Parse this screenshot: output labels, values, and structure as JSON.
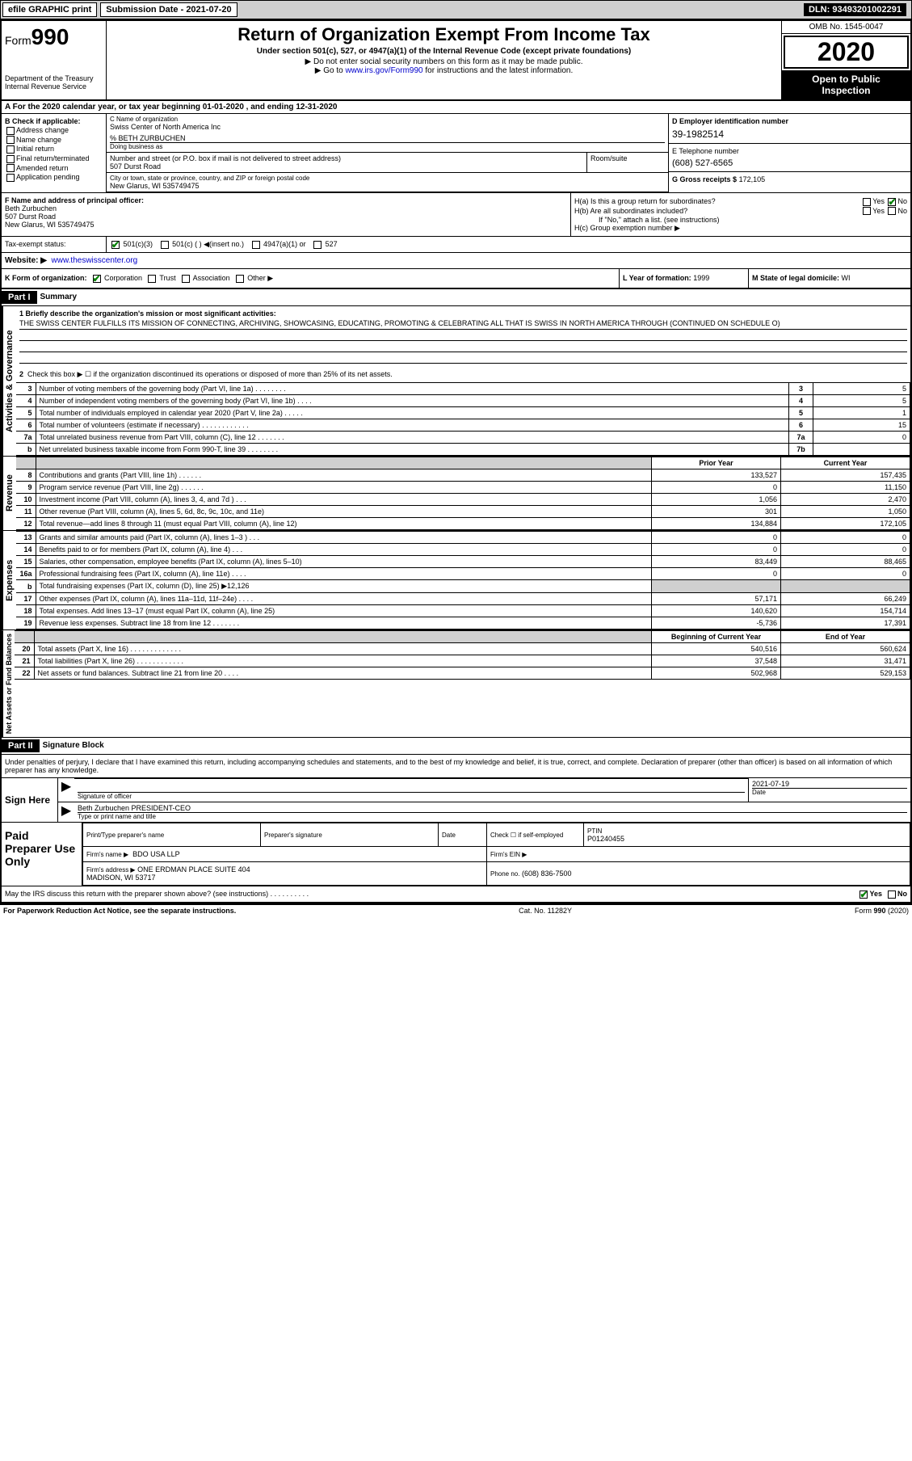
{
  "topbar": {
    "efile": "efile GRAPHIC print",
    "submission": "Submission Date - 2021-07-20",
    "dln": "DLN: 93493201002291"
  },
  "header": {
    "form": "Form",
    "form_num": "990",
    "title": "Return of Organization Exempt From Income Tax",
    "sub1": "Under section 501(c), 527, or 4947(a)(1) of the Internal Revenue Code (except private foundations)",
    "note1": "▶ Do not enter social security numbers on this form as it may be made public.",
    "note2_pre": "▶ Go to ",
    "note2_link": "www.irs.gov/Form990",
    "note2_post": " for instructions and the latest information.",
    "dept": "Department of the Treasury\nInternal Revenue Service",
    "omb": "OMB No. 1545-0047",
    "year": "2020",
    "inspect1": "Open to Public",
    "inspect2": "Inspection"
  },
  "row_a": "A For the 2020 calendar year, or tax year beginning 01-01-2020    , and ending 12-31-2020",
  "col_b": {
    "title": "B Check if applicable:",
    "opts": [
      "Address change",
      "Name change",
      "Initial return",
      "Final return/terminated",
      "Amended return",
      "Application pending"
    ]
  },
  "name_block": {
    "c_lbl": "C Name of organization",
    "c_val": "Swiss Center of North America Inc",
    "care": "% BETH ZURBUCHEN",
    "dba_lbl": "Doing business as",
    "dba_val": "",
    "addr_lbl": "Number and street (or P.O. box if mail is not delivered to street address)",
    "room_lbl": "Room/suite",
    "addr_val": "507 Durst Road",
    "city_lbl": "City or town, state or province, country, and ZIP or foreign postal code",
    "city_val": "New Glarus, WI  535749475"
  },
  "d_block": {
    "lbl": "D Employer identification number",
    "val": "39-1982514"
  },
  "e_block": {
    "lbl": "E Telephone number",
    "val": "(608) 527-6565"
  },
  "g_block": {
    "lbl": "G Gross receipts $",
    "val": "172,105"
  },
  "f_block": {
    "lbl": "F  Name and address of principal officer:",
    "name": "Beth Zurbuchen",
    "addr": "507 Durst Road",
    "city": "New Glarus, WI  535749475"
  },
  "h_block": {
    "ha": "H(a)  Is this a group return for subordinates?",
    "hb": "H(b)  Are all subordinates included?",
    "hb_note": "If \"No,\" attach a list. (see instructions)",
    "hc": "H(c)  Group exemption number ▶",
    "yes": "Yes",
    "no": "No"
  },
  "i_block": {
    "lbl": "Tax-exempt status:",
    "opts": [
      "501(c)(3)",
      "501(c) (  ) ◀(insert no.)",
      "4947(a)(1) or",
      "527"
    ]
  },
  "j_block": {
    "lbl": "J",
    "web": "Website: ▶",
    "url": "www.theswisscenter.org"
  },
  "k_block": {
    "lbl": "K Form of organization:",
    "opts": [
      "Corporation",
      "Trust",
      "Association",
      "Other ▶"
    ]
  },
  "l_block": {
    "lbl": "L Year of formation:",
    "val": "1999"
  },
  "m_block": {
    "lbl": "M State of legal domicile:",
    "val": "WI"
  },
  "part1": {
    "hdr": "Part I",
    "title": "Summary",
    "line1_lbl": "1  Briefly describe the organization's mission or most significant activities:",
    "line1_val": "THE SWISS CENTER FULFILLS ITS MISSION OF CONNECTING, ARCHIVING, SHOWCASING, EDUCATING, PROMOTING & CELEBRATING ALL THAT IS SWISS IN NORTH AMERICA THROUGH (CONTINUED ON SCHEDULE O)",
    "line2": "Check this box ▶ ☐  if the organization discontinued its operations or disposed of more than 25% of its net assets.",
    "rows_gov": [
      {
        "n": "3",
        "d": "Number of voting members of the governing body (Part VI, line 1a)  .   .   .   .   .   .   .   .",
        "b": "3",
        "v": "5"
      },
      {
        "n": "4",
        "d": "Number of independent voting members of the governing body (Part VI, line 1b)  .   .   .   .",
        "b": "4",
        "v": "5"
      },
      {
        "n": "5",
        "d": "Total number of individuals employed in calendar year 2020 (Part V, line 2a)  .   .   .   .   .",
        "b": "5",
        "v": "1"
      },
      {
        "n": "6",
        "d": "Total number of volunteers (estimate if necessary)   .   .   .   .   .   .   .   .   .   .   .   .",
        "b": "6",
        "v": "15"
      },
      {
        "n": "7a",
        "d": "Total unrelated business revenue from Part VIII, column (C), line 12  .   .   .   .   .   .   .",
        "b": "7a",
        "v": "0"
      },
      {
        "n": "b",
        "d": "Net unrelated business taxable income from Form 990-T, line 39   .   .   .   .   .   .   .   .",
        "b": "7b",
        "v": ""
      }
    ],
    "prior_hdr": "Prior Year",
    "curr_hdr": "Current Year",
    "rows_rev": [
      {
        "n": "8",
        "d": "Contributions and grants (Part VIII, line 1h)   .   .   .   .   .   .",
        "p": "133,527",
        "c": "157,435"
      },
      {
        "n": "9",
        "d": "Program service revenue (Part VIII, line 2g)   .   .   .   .   .   .",
        "p": "0",
        "c": "11,150"
      },
      {
        "n": "10",
        "d": "Investment income (Part VIII, column (A), lines 3, 4, and 7d )   .   .   .",
        "p": "1,056",
        "c": "2,470"
      },
      {
        "n": "11",
        "d": "Other revenue (Part VIII, column (A), lines 5, 6d, 8c, 9c, 10c, and 11e)",
        "p": "301",
        "c": "1,050"
      },
      {
        "n": "12",
        "d": "Total revenue—add lines 8 through 11 (must equal Part VIII, column (A), line 12)",
        "p": "134,884",
        "c": "172,105"
      }
    ],
    "rows_exp": [
      {
        "n": "13",
        "d": "Grants and similar amounts paid (Part IX, column (A), lines 1–3 )  .   .   .",
        "p": "0",
        "c": "0"
      },
      {
        "n": "14",
        "d": "Benefits paid to or for members (Part IX, column (A), line 4)  .   .   .",
        "p": "0",
        "c": "0"
      },
      {
        "n": "15",
        "d": "Salaries, other compensation, employee benefits (Part IX, column (A), lines 5–10)",
        "p": "83,449",
        "c": "88,465"
      },
      {
        "n": "16a",
        "d": "Professional fundraising fees (Part IX, column (A), line 11e)  .   .   .   .",
        "p": "0",
        "c": "0"
      },
      {
        "n": "b",
        "d": "Total fundraising expenses (Part IX, column (D), line 25) ▶12,126",
        "p": "",
        "c": "",
        "shade": true
      },
      {
        "n": "17",
        "d": "Other expenses (Part IX, column (A), lines 11a–11d, 11f–24e)  .   .   .   .",
        "p": "57,171",
        "c": "66,249"
      },
      {
        "n": "18",
        "d": "Total expenses. Add lines 13–17 (must equal Part IX, column (A), line 25)",
        "p": "140,620",
        "c": "154,714"
      },
      {
        "n": "19",
        "d": "Revenue less expenses. Subtract line 18 from line 12 .   .   .   .   .   .   .",
        "p": "-5,736",
        "c": "17,391"
      }
    ],
    "beg_hdr": "Beginning of Current Year",
    "end_hdr": "End of Year",
    "rows_net": [
      {
        "n": "20",
        "d": "Total assets (Part X, line 16)  .   .   .   .   .   .   .   .   .   .   .   .   .",
        "p": "540,516",
        "c": "560,624"
      },
      {
        "n": "21",
        "d": "Total liabilities (Part X, line 26)  .   .   .   .   .   .   .   .   .   .   .   .",
        "p": "37,548",
        "c": "31,471"
      },
      {
        "n": "22",
        "d": "Net assets or fund balances. Subtract line 21 from line 20  .   .   .   .",
        "p": "502,968",
        "c": "529,153"
      }
    ],
    "vert_gov": "Activities & Governance",
    "vert_rev": "Revenue",
    "vert_exp": "Expenses",
    "vert_net": "Net Assets or Fund Balances"
  },
  "part2": {
    "hdr": "Part II",
    "title": "Signature Block",
    "declare": "Under penalties of perjury, I declare that I have examined this return, including accompanying schedules and statements, and to the best of my knowledge and belief, it is true, correct, and complete. Declaration of preparer (other than officer) is based on all information of which preparer has any knowledge.",
    "sign_here": "Sign Here",
    "sig_officer": "Signature of officer",
    "date_lbl": "Date",
    "date_val": "2021-07-19",
    "name_title": "Beth Zurbuchen PRESIDENT-CEO",
    "name_title_lbl": "Type or print name and title",
    "paid": "Paid Preparer Use Only",
    "prep_name_lbl": "Print/Type preparer's name",
    "prep_sig_lbl": "Preparer's signature",
    "prep_date_lbl": "Date",
    "check_lbl": "Check ☐ if self-employed",
    "ptin_lbl": "PTIN",
    "ptin_val": "P01240455",
    "firm_name_lbl": "Firm's name   ▶",
    "firm_name": "BDO USA LLP",
    "firm_ein_lbl": "Firm's EIN ▶",
    "firm_addr_lbl": "Firm's address ▶",
    "firm_addr": "ONE ERDMAN PLACE SUITE 404\nMADISON, WI  53717",
    "phone_lbl": "Phone no.",
    "phone_val": "(608) 836-7500",
    "discuss": "May the IRS discuss this return with the preparer shown above? (see instructions)   .   .   .   .   .   .   .   .   .   .",
    "yes": "Yes",
    "no": "No"
  },
  "footer": {
    "left": "For Paperwork Reduction Act Notice, see the separate instructions.",
    "center": "Cat. No. 11282Y",
    "right": "Form 990 (2020)"
  }
}
